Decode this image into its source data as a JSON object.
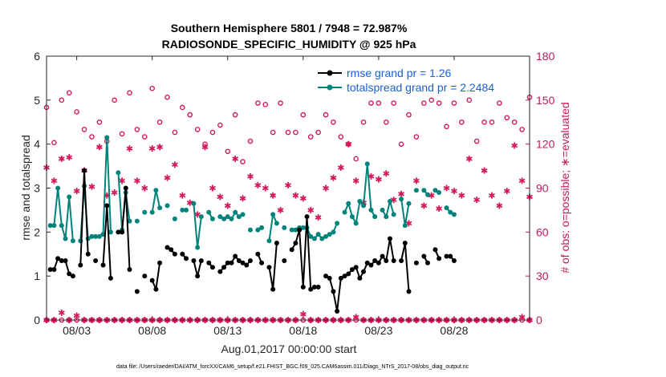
{
  "chart_data": {
    "type": "line",
    "title": [
      "Southern Hemisphere 5801 / 7948 = 72.987%",
      "RADIOSONDE_SPECIFIC_HUMIDITY @ 925 hPa"
    ],
    "xlabel": "Aug.01,2017 00:00:00 start",
    "ylabel": "rmse and totalspread",
    "y2label": "# of obs: o=possible; ∗=evaluated",
    "footnote": "data file: /Users/raeder/DAI/ATM_forcXX/CAM6_setup/f.e21.FHIST_BGC.f09_025.CAM6assim.011/Diags_NTrS_2017-08/obs_diag_output.nc",
    "x_ticks": [
      {
        "day": 3,
        "label": "08/03"
      },
      {
        "day": 8,
        "label": "08/08"
      },
      {
        "day": 13,
        "label": "08/13"
      },
      {
        "day": 18,
        "label": "08/18"
      },
      {
        "day": 23,
        "label": "08/23"
      },
      {
        "day": 28,
        "label": "08/28"
      }
    ],
    "xlim": [
      1,
      33
    ],
    "ylim": [
      0,
      6
    ],
    "y_ticks": [
      0,
      1,
      2,
      3,
      4,
      5,
      6
    ],
    "y2lim": [
      0,
      180
    ],
    "y2_ticks": [
      0,
      30,
      60,
      90,
      120,
      150,
      180
    ],
    "legend": [
      {
        "label": "rmse grand pr = 1.26",
        "color": "#000000"
      },
      {
        "label": "totalspread grand pr = 2.2484",
        "color": "#00837a"
      }
    ],
    "colors": {
      "rmse": "#000000",
      "spread": "#00837a",
      "obs": "#d6195b",
      "axis": "#262626",
      "right_axis": "#c2185b"
    },
    "series": [
      {
        "name": "rmse",
        "x_start": 1.25,
        "x_step": 0.25,
        "values": [
          1.15,
          1.15,
          1.4,
          1.35,
          1.35,
          1.05,
          1.0,
          null,
          1.25,
          3.4,
          1.5,
          null,
          1.35,
          null,
          1.25,
          2.6,
          0.95,
          null,
          2.0,
          2.0,
          3.0,
          1.15,
          null,
          0.65,
          null,
          1.0,
          null,
          0.9,
          0.7,
          1.3,
          null,
          1.65,
          1.6,
          1.5,
          null,
          1.5,
          1.4,
          null,
          1.35,
          1.0,
          1.35,
          null,
          1.3,
          1.2,
          null,
          1.1,
          1.2,
          1.3,
          1.3,
          1.45,
          1.35,
          1.3,
          1.25,
          1.35,
          null,
          1.5,
          1.3,
          null,
          1.2,
          0.7,
          1.75,
          null,
          1.35,
          null,
          1.6,
          1.75,
          2.05,
          0.75,
          2.35,
          0.7,
          0.75,
          0.75,
          null,
          1.0,
          0.95,
          0.65,
          0.2,
          0.95,
          1.0,
          1.05,
          1.15,
          1.2,
          0.95,
          1.1,
          1.3,
          1.25,
          1.35,
          1.3,
          1.45,
          1.35,
          1.85,
          1.35,
          null,
          1.35,
          1.75,
          0.65,
          null,
          1.3,
          null,
          1.45,
          1.3,
          null,
          1.6,
          1.4,
          null,
          1.45,
          1.45,
          1.35,
          null
        ]
      },
      {
        "name": "totalspread",
        "x_start": 1.25,
        "x_step": 0.25,
        "values": [
          2.15,
          2.15,
          3.0,
          2.15,
          1.85,
          2.8,
          1.8,
          null,
          1.8,
          3.05,
          1.85,
          1.9,
          1.9,
          1.9,
          1.95,
          4.15,
          2.0,
          null,
          3.35,
          2.05,
          2.9,
          2.25,
          null,
          2.25,
          null,
          2.45,
          null,
          2.45,
          2.95,
          2.55,
          null,
          2.6,
          null,
          2.3,
          null,
          2.5,
          2.5,
          null,
          2.65,
          1.65,
          2.35,
          null,
          2.45,
          2.3,
          null,
          2.35,
          2.3,
          2.35,
          2.3,
          2.45,
          2.35,
          2.4,
          null,
          2.05,
          null,
          2.05,
          2.1,
          null,
          1.8,
          2.4,
          2.2,
          null,
          2.1,
          null,
          2.05,
          2.05,
          2.1,
          2.1,
          2.1,
          1.9,
          1.85,
          1.95,
          1.85,
          1.9,
          1.95,
          2.0,
          2.2,
          null,
          2.45,
          2.65,
          2.35,
          2.2,
          2.7,
          2.6,
          3.55,
          2.5,
          2.35,
          null,
          2.5,
          2.35,
          2.7,
          2.4,
          null,
          2.75,
          2.15,
          2.65,
          null,
          2.95,
          null,
          2.95,
          2.85,
          null,
          2.95,
          2.9,
          null,
          2.55,
          2.45,
          2.4,
          null
        ]
      },
      {
        "name": "obs_possible",
        "axis": "right",
        "marker": "o",
        "x": [
          1,
          1.5,
          2,
          2.5,
          3,
          3.5,
          4,
          4.5,
          5,
          5.5,
          6,
          6.5,
          7,
          7.5,
          8,
          8.5,
          9,
          9.5,
          10,
          10.5,
          11,
          11.5,
          12,
          12.5,
          13,
          13.5,
          14,
          14.5,
          15,
          15.5,
          16,
          16.5,
          17,
          17.5,
          18,
          18.5,
          19,
          19.5,
          20,
          20.5,
          21,
          21.5,
          22,
          22.5,
          23,
          23.5,
          24,
          24.5,
          25,
          25.5,
          26,
          26.5,
          27,
          27.5,
          28,
          28.5,
          29,
          29.5,
          30,
          30.5,
          31,
          31.5,
          32,
          32.5,
          33
        ],
        "values": [
          145,
          121,
          150,
          155,
          142,
          130,
          125,
          135,
          122,
          150,
          127,
          155,
          130,
          125,
          158,
          135,
          152,
          128,
          145,
          140,
          130,
          120,
          128,
          133,
          115,
          140,
          108,
          122,
          148,
          147,
          128,
          148,
          128,
          128,
          140,
          125,
          128,
          140,
          135,
          125,
          120,
          110,
          135,
          148,
          148,
          135,
          148,
          120,
          140,
          125,
          148,
          150,
          148,
          132,
          148,
          135,
          150,
          122,
          135,
          135,
          148,
          138,
          135,
          130,
          152
        ]
      },
      {
        "name": "obs_evaluated",
        "axis": "right",
        "marker": "*",
        "x": [
          1,
          1.5,
          2,
          2.5,
          3,
          3.5,
          4,
          4.5,
          5,
          5.5,
          6,
          6.5,
          7,
          7.5,
          8,
          8.5,
          9,
          9.5,
          10,
          10.5,
          11,
          11.5,
          12,
          12.5,
          13,
          13.5,
          14,
          14.5,
          15,
          15.5,
          16,
          16.5,
          17,
          17.5,
          18,
          18.5,
          19,
          19.5,
          20,
          20.5,
          21,
          21.5,
          22,
          22.5,
          23,
          23.5,
          24,
          24.5,
          25,
          25.5,
          26,
          26.5,
          27,
          27.5,
          28,
          28.5,
          29,
          29.5,
          30,
          30.5,
          31,
          31.5,
          32,
          32.5,
          33
        ],
        "values": [
          104,
          95,
          110,
          111,
          88,
          102,
          91,
          118,
          85,
          87,
          95,
          117,
          95,
          90,
          117,
          118,
          97,
          106,
          85,
          80,
          72,
          118,
          90,
          84,
          78,
          110,
          83,
          98,
          92,
          90,
          85,
          75,
          92,
          85,
          83,
          75,
          70,
          90,
          97,
          104,
          120,
          95,
          80,
          98,
          96,
          100,
          82,
          86,
          66,
          95,
          78,
          85,
          76,
          90,
          88,
          85,
          110,
          82,
          102,
          85,
          78,
          88,
          119,
          95,
          84
        ]
      },
      {
        "name": "obs_possible_floor",
        "axis": "right",
        "marker": "o",
        "x": [
          1,
          1.5,
          2,
          2.5,
          3,
          3.5,
          4,
          4.5,
          5,
          5.5,
          6,
          6.5,
          7,
          7.5,
          8,
          8.5,
          9,
          9.5,
          10,
          10.5,
          11,
          11.5,
          12,
          12.5,
          13,
          13.5,
          14,
          14.5,
          15,
          15.5,
          16,
          16.5,
          17,
          17.5,
          18,
          18.5,
          19,
          19.5,
          20,
          20.5,
          21,
          21.5,
          22,
          22.5,
          23,
          23.5,
          24,
          24.5,
          25,
          25.5,
          26,
          26.5,
          27,
          27.5,
          28,
          28.5,
          29,
          29.5,
          30,
          30.5,
          31,
          31.5,
          32,
          32.5,
          33
        ],
        "values": [
          0,
          0,
          0,
          0,
          0,
          0,
          0,
          0,
          0,
          0,
          0,
          0,
          0,
          0,
          0,
          0,
          0,
          0,
          0,
          0,
          0,
          0,
          0,
          0,
          0,
          0,
          0,
          0,
          0,
          0,
          0,
          0,
          0,
          0,
          0,
          0,
          0,
          0,
          0,
          0,
          0,
          0,
          0,
          0,
          0,
          0,
          0,
          0,
          0,
          0,
          0,
          0,
          0,
          0,
          0,
          0,
          0,
          0,
          0,
          0,
          0,
          0,
          0,
          0,
          0
        ]
      },
      {
        "name": "obs_evaluated_floor",
        "axis": "right",
        "marker": "*",
        "x": [
          1,
          1.5,
          2,
          2.5,
          3,
          3.5,
          4,
          4.5,
          5,
          5.5,
          6,
          6.5,
          7,
          7.5,
          8,
          8.5,
          9,
          9.5,
          10,
          10.5,
          11,
          11.5,
          12,
          12.5,
          13,
          13.5,
          14,
          14.5,
          15,
          15.5,
          16,
          16.5,
          17,
          17.5,
          18,
          18.5,
          19,
          19.5,
          20,
          20.5,
          21,
          21.5,
          22,
          22.5,
          23,
          23.5,
          24,
          24.5,
          25,
          25.5,
          26,
          26.5,
          27,
          27.5,
          28,
          28.5,
          29,
          29.5,
          30,
          30.5,
          31,
          31.5,
          32,
          32.5,
          33
        ],
        "values": [
          0,
          0,
          5,
          0,
          3,
          0,
          0,
          0,
          0,
          0,
          0,
          0,
          0,
          0,
          0,
          0,
          0,
          0,
          0,
          0,
          0,
          0,
          0,
          0,
          0,
          0,
          0,
          0,
          0,
          0,
          0,
          0,
          0,
          0,
          4,
          0,
          0,
          0,
          0,
          0,
          0,
          2,
          0,
          0,
          0,
          0,
          0,
          0,
          0,
          0,
          0,
          0,
          0,
          0,
          0,
          0,
          0,
          0,
          0,
          0,
          0,
          0,
          0,
          2,
          0
        ]
      }
    ]
  }
}
